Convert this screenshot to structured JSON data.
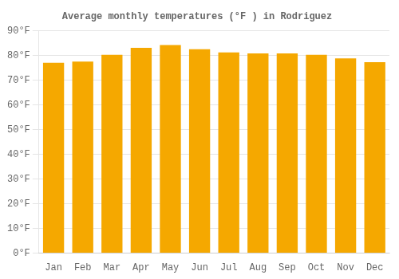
{
  "chart_data": {
    "type": "bar",
    "title": "Average monthly temperatures (°F ) in Rodriguez",
    "categories": [
      "Jan",
      "Feb",
      "Mar",
      "Apr",
      "May",
      "Jun",
      "Jul",
      "Aug",
      "Sep",
      "Oct",
      "Nov",
      "Dec"
    ],
    "values": [
      77.0,
      77.5,
      80.2,
      83.0,
      84.2,
      82.5,
      81.2,
      80.8,
      80.8,
      80.2,
      78.8,
      77.2
    ],
    "color": "#F5A800",
    "ylim": [
      0,
      90
    ],
    "yticks": [
      {
        "value": 0,
        "label": "0°F"
      },
      {
        "value": 10,
        "label": "10°F"
      },
      {
        "value": 20,
        "label": "20°F"
      },
      {
        "value": 30,
        "label": "30°F"
      },
      {
        "value": 40,
        "label": "40°F"
      },
      {
        "value": 50,
        "label": "50°F"
      },
      {
        "value": 60,
        "label": "60°F"
      },
      {
        "value": 70,
        "label": "70°F"
      },
      {
        "value": 80,
        "label": "80°F"
      },
      {
        "value": 90,
        "label": "90°F"
      }
    ],
    "grid": true
  }
}
